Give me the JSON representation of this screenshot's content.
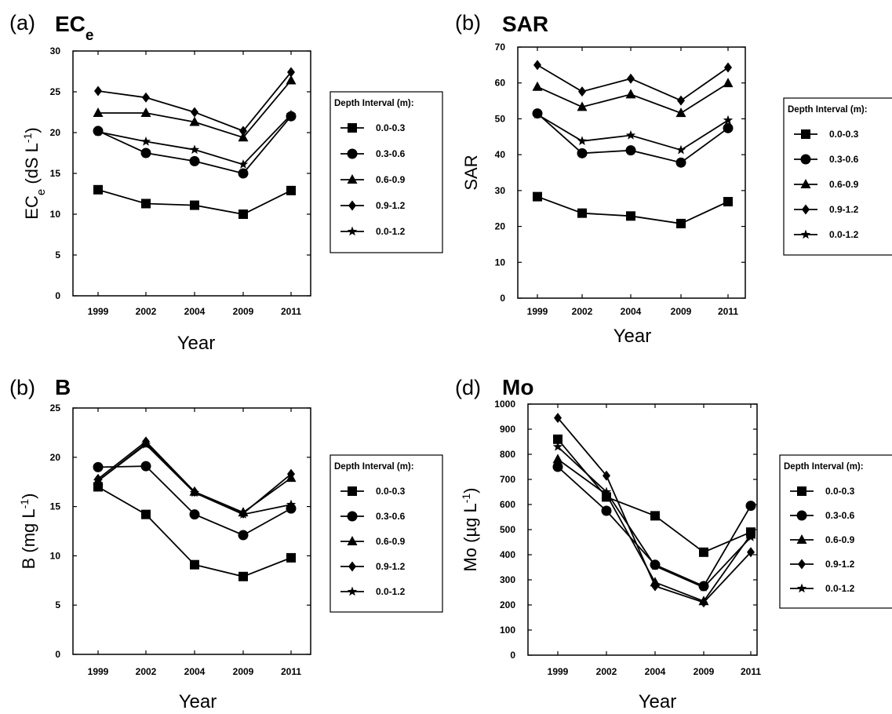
{
  "colors": {
    "line": "#000000",
    "background": "#ffffff"
  },
  "chart_data": [
    {
      "id": "ec",
      "type": "line",
      "panel_label": "(a)",
      "title": "EC",
      "title_sub": "e",
      "xlabel": "Year",
      "ylabel": "EC",
      "ylabel_sub": "e",
      "ylabel_unit": " (dS L",
      "ylabel_sup": "-1",
      "ylabel_close": ")",
      "categories": [
        "1999",
        "2002",
        "2004",
        "2009",
        "2011"
      ],
      "ylim": [
        0,
        30
      ],
      "yticks": [
        "0",
        "5",
        "10",
        "15",
        "20",
        "25",
        "30"
      ],
      "legend_title": "Depth Interval (m):",
      "legend_position": "right",
      "series": [
        {
          "name": "0.0-0.3",
          "marker": "square",
          "values": [
            13.0,
            11.3,
            11.1,
            10.0,
            12.9
          ]
        },
        {
          "name": "0.3-0.6",
          "marker": "circle",
          "values": [
            20.2,
            17.5,
            16.5,
            15.0,
            22.0
          ]
        },
        {
          "name": "0.6-0.9",
          "marker": "triangle",
          "values": [
            22.4,
            22.4,
            21.3,
            19.4,
            26.4
          ]
        },
        {
          "name": "0.9-1.2",
          "marker": "diamond",
          "values": [
            25.1,
            24.3,
            22.5,
            20.2,
            27.4
          ]
        },
        {
          "name": "0.0-1.2",
          "marker": "star",
          "values": [
            20.1,
            18.9,
            17.9,
            16.1,
            22.2
          ]
        }
      ]
    },
    {
      "id": "sar",
      "type": "line",
      "panel_label": "(b)",
      "title": "SAR",
      "xlabel": "Year",
      "ylabel": "SAR",
      "categories": [
        "1999",
        "2002",
        "2004",
        "2009",
        "2011"
      ],
      "ylim": [
        0,
        70
      ],
      "yticks": [
        "0",
        "10",
        "20",
        "30",
        "40",
        "50",
        "60",
        "70"
      ],
      "legend_title": "Depth Interval (m):",
      "legend_position": "right",
      "series": [
        {
          "name": "0.0-0.3",
          "marker": "square",
          "values": [
            28.3,
            23.7,
            22.9,
            20.8,
            26.9
          ]
        },
        {
          "name": "0.3-0.6",
          "marker": "circle",
          "values": [
            51.5,
            40.4,
            41.2,
            37.8,
            47.4
          ]
        },
        {
          "name": "0.6-0.9",
          "marker": "triangle",
          "values": [
            58.9,
            53.3,
            56.8,
            51.6,
            59.9
          ]
        },
        {
          "name": "0.9-1.2",
          "marker": "diamond",
          "values": [
            65.0,
            57.6,
            61.2,
            55.1,
            64.3
          ]
        },
        {
          "name": "0.0-1.2",
          "marker": "star",
          "values": [
            51.2,
            43.8,
            45.4,
            41.3,
            49.6
          ]
        }
      ]
    },
    {
      "id": "b",
      "type": "line",
      "panel_label": "(b)",
      "title": "B",
      "xlabel": "Year",
      "ylabel": "B (mg L",
      "ylabel_sup": "-1",
      "ylabel_close": ")",
      "categories": [
        "1999",
        "2002",
        "2004",
        "2009",
        "2011"
      ],
      "ylim": [
        0,
        25
      ],
      "yticks": [
        "0",
        "5",
        "10",
        "15",
        "20",
        "25"
      ],
      "legend_title": "Depth Interval (m):",
      "legend_position": "right",
      "series": [
        {
          "name": "0.0-0.3",
          "marker": "square",
          "values": [
            17.0,
            14.2,
            9.1,
            7.9,
            9.8
          ]
        },
        {
          "name": "0.3-0.6",
          "marker": "circle",
          "values": [
            19.0,
            19.1,
            14.2,
            12.1,
            14.8
          ]
        },
        {
          "name": "0.6-0.9",
          "marker": "triangle",
          "values": [
            17.6,
            21.4,
            16.5,
            14.4,
            17.9
          ]
        },
        {
          "name": "0.9-1.2",
          "marker": "diamond",
          "values": [
            17.8,
            21.6,
            16.5,
            14.3,
            18.3
          ]
        },
        {
          "name": "0.0-1.2",
          "marker": "star",
          "values": [
            17.6,
            21.3,
            16.4,
            14.2,
            15.2
          ]
        }
      ]
    },
    {
      "id": "mo",
      "type": "line",
      "panel_label": "(d)",
      "title": "Mo",
      "xlabel": "Year",
      "ylabel": "Mo (µg L",
      "ylabel_sup": "-1",
      "ylabel_close": ")",
      "categories": [
        "1999",
        "2002",
        "2004",
        "2009",
        "2011"
      ],
      "ylim": [
        0,
        1000
      ],
      "yticks": [
        "0",
        "100",
        "200",
        "300",
        "400",
        "500",
        "600",
        "700",
        "800",
        "900",
        "1000"
      ],
      "legend_title": "Depth Interval (m):",
      "legend_position": "right",
      "series": [
        {
          "name": "0.0-0.3",
          "marker": "square",
          "values": [
            860,
            630,
            555,
            410,
            490
          ]
        },
        {
          "name": "0.3-0.6",
          "marker": "circle",
          "values": [
            750,
            575,
            360,
            275,
            595
          ]
        },
        {
          "name": "0.6-0.9",
          "marker": "triangle",
          "values": [
            780,
            640,
            290,
            215,
            480
          ]
        },
        {
          "name": "0.9-1.2",
          "marker": "diamond",
          "values": [
            945,
            715,
            275,
            210,
            410
          ]
        },
        {
          "name": "0.0-1.2",
          "marker": "star",
          "values": [
            830,
            650,
            355,
            270,
            470
          ]
        }
      ]
    }
  ]
}
